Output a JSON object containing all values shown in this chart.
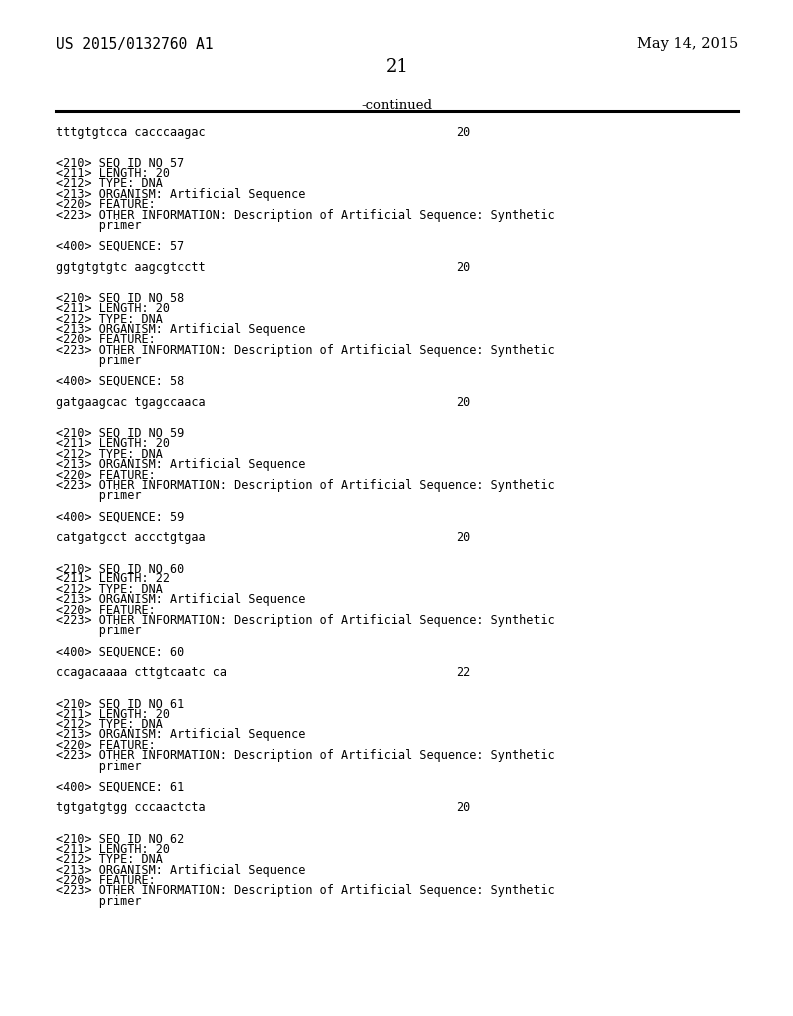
{
  "patent_number": "US 2015/0132760 A1",
  "date": "May 14, 2015",
  "page_number": "21",
  "continued_label": "-continued",
  "background_color": "#ffffff",
  "text_color": "#000000",
  "line_content": [
    {
      "text": "tttgtgtcca cacccaagac",
      "num": "20"
    },
    {
      "text": "",
      "num": ""
    },
    {
      "text": "",
      "num": ""
    },
    {
      "text": "<210> SEQ ID NO 57",
      "num": ""
    },
    {
      "text": "<211> LENGTH: 20",
      "num": ""
    },
    {
      "text": "<212> TYPE: DNA",
      "num": ""
    },
    {
      "text": "<213> ORGANISM: Artificial Sequence",
      "num": ""
    },
    {
      "text": "<220> FEATURE:",
      "num": ""
    },
    {
      "text": "<223> OTHER INFORMATION: Description of Artificial Sequence: Synthetic",
      "num": ""
    },
    {
      "text": "      primer",
      "num": ""
    },
    {
      "text": "",
      "num": ""
    },
    {
      "text": "<400> SEQUENCE: 57",
      "num": ""
    },
    {
      "text": "",
      "num": ""
    },
    {
      "text": "ggtgtgtgtc aagcgtcctt",
      "num": "20"
    },
    {
      "text": "",
      "num": ""
    },
    {
      "text": "",
      "num": ""
    },
    {
      "text": "<210> SEQ ID NO 58",
      "num": ""
    },
    {
      "text": "<211> LENGTH: 20",
      "num": ""
    },
    {
      "text": "<212> TYPE: DNA",
      "num": ""
    },
    {
      "text": "<213> ORGANISM: Artificial Sequence",
      "num": ""
    },
    {
      "text": "<220> FEATURE:",
      "num": ""
    },
    {
      "text": "<223> OTHER INFORMATION: Description of Artificial Sequence: Synthetic",
      "num": ""
    },
    {
      "text": "      primer",
      "num": ""
    },
    {
      "text": "",
      "num": ""
    },
    {
      "text": "<400> SEQUENCE: 58",
      "num": ""
    },
    {
      "text": "",
      "num": ""
    },
    {
      "text": "gatgaagcac tgagccaaca",
      "num": "20"
    },
    {
      "text": "",
      "num": ""
    },
    {
      "text": "",
      "num": ""
    },
    {
      "text": "<210> SEQ ID NO 59",
      "num": ""
    },
    {
      "text": "<211> LENGTH: 20",
      "num": ""
    },
    {
      "text": "<212> TYPE: DNA",
      "num": ""
    },
    {
      "text": "<213> ORGANISM: Artificial Sequence",
      "num": ""
    },
    {
      "text": "<220> FEATURE:",
      "num": ""
    },
    {
      "text": "<223> OTHER INFORMATION: Description of Artificial Sequence: Synthetic",
      "num": ""
    },
    {
      "text": "      primer",
      "num": ""
    },
    {
      "text": "",
      "num": ""
    },
    {
      "text": "<400> SEQUENCE: 59",
      "num": ""
    },
    {
      "text": "",
      "num": ""
    },
    {
      "text": "catgatgcct accctgtgaa",
      "num": "20"
    },
    {
      "text": "",
      "num": ""
    },
    {
      "text": "",
      "num": ""
    },
    {
      "text": "<210> SEQ ID NO 60",
      "num": ""
    },
    {
      "text": "<211> LENGTH: 22",
      "num": ""
    },
    {
      "text": "<212> TYPE: DNA",
      "num": ""
    },
    {
      "text": "<213> ORGANISM: Artificial Sequence",
      "num": ""
    },
    {
      "text": "<220> FEATURE:",
      "num": ""
    },
    {
      "text": "<223> OTHER INFORMATION: Description of Artificial Sequence: Synthetic",
      "num": ""
    },
    {
      "text": "      primer",
      "num": ""
    },
    {
      "text": "",
      "num": ""
    },
    {
      "text": "<400> SEQUENCE: 60",
      "num": ""
    },
    {
      "text": "",
      "num": ""
    },
    {
      "text": "ccagacaaaa cttgtcaatc ca",
      "num": "22"
    },
    {
      "text": "",
      "num": ""
    },
    {
      "text": "",
      "num": ""
    },
    {
      "text": "<210> SEQ ID NO 61",
      "num": ""
    },
    {
      "text": "<211> LENGTH: 20",
      "num": ""
    },
    {
      "text": "<212> TYPE: DNA",
      "num": ""
    },
    {
      "text": "<213> ORGANISM: Artificial Sequence",
      "num": ""
    },
    {
      "text": "<220> FEATURE:",
      "num": ""
    },
    {
      "text": "<223> OTHER INFORMATION: Description of Artificial Sequence: Synthetic",
      "num": ""
    },
    {
      "text": "      primer",
      "num": ""
    },
    {
      "text": "",
      "num": ""
    },
    {
      "text": "<400> SEQUENCE: 61",
      "num": ""
    },
    {
      "text": "",
      "num": ""
    },
    {
      "text": "tgtgatgtgg cccaactcta",
      "num": "20"
    },
    {
      "text": "",
      "num": ""
    },
    {
      "text": "",
      "num": ""
    },
    {
      "text": "<210> SEQ ID NO 62",
      "num": ""
    },
    {
      "text": "<211> LENGTH: 20",
      "num": ""
    },
    {
      "text": "<212> TYPE: DNA",
      "num": ""
    },
    {
      "text": "<213> ORGANISM: Artificial Sequence",
      "num": ""
    },
    {
      "text": "<220> FEATURE:",
      "num": ""
    },
    {
      "text": "<223> OTHER INFORMATION: Description of Artificial Sequence: Synthetic",
      "num": ""
    },
    {
      "text": "      primer",
      "num": ""
    }
  ]
}
